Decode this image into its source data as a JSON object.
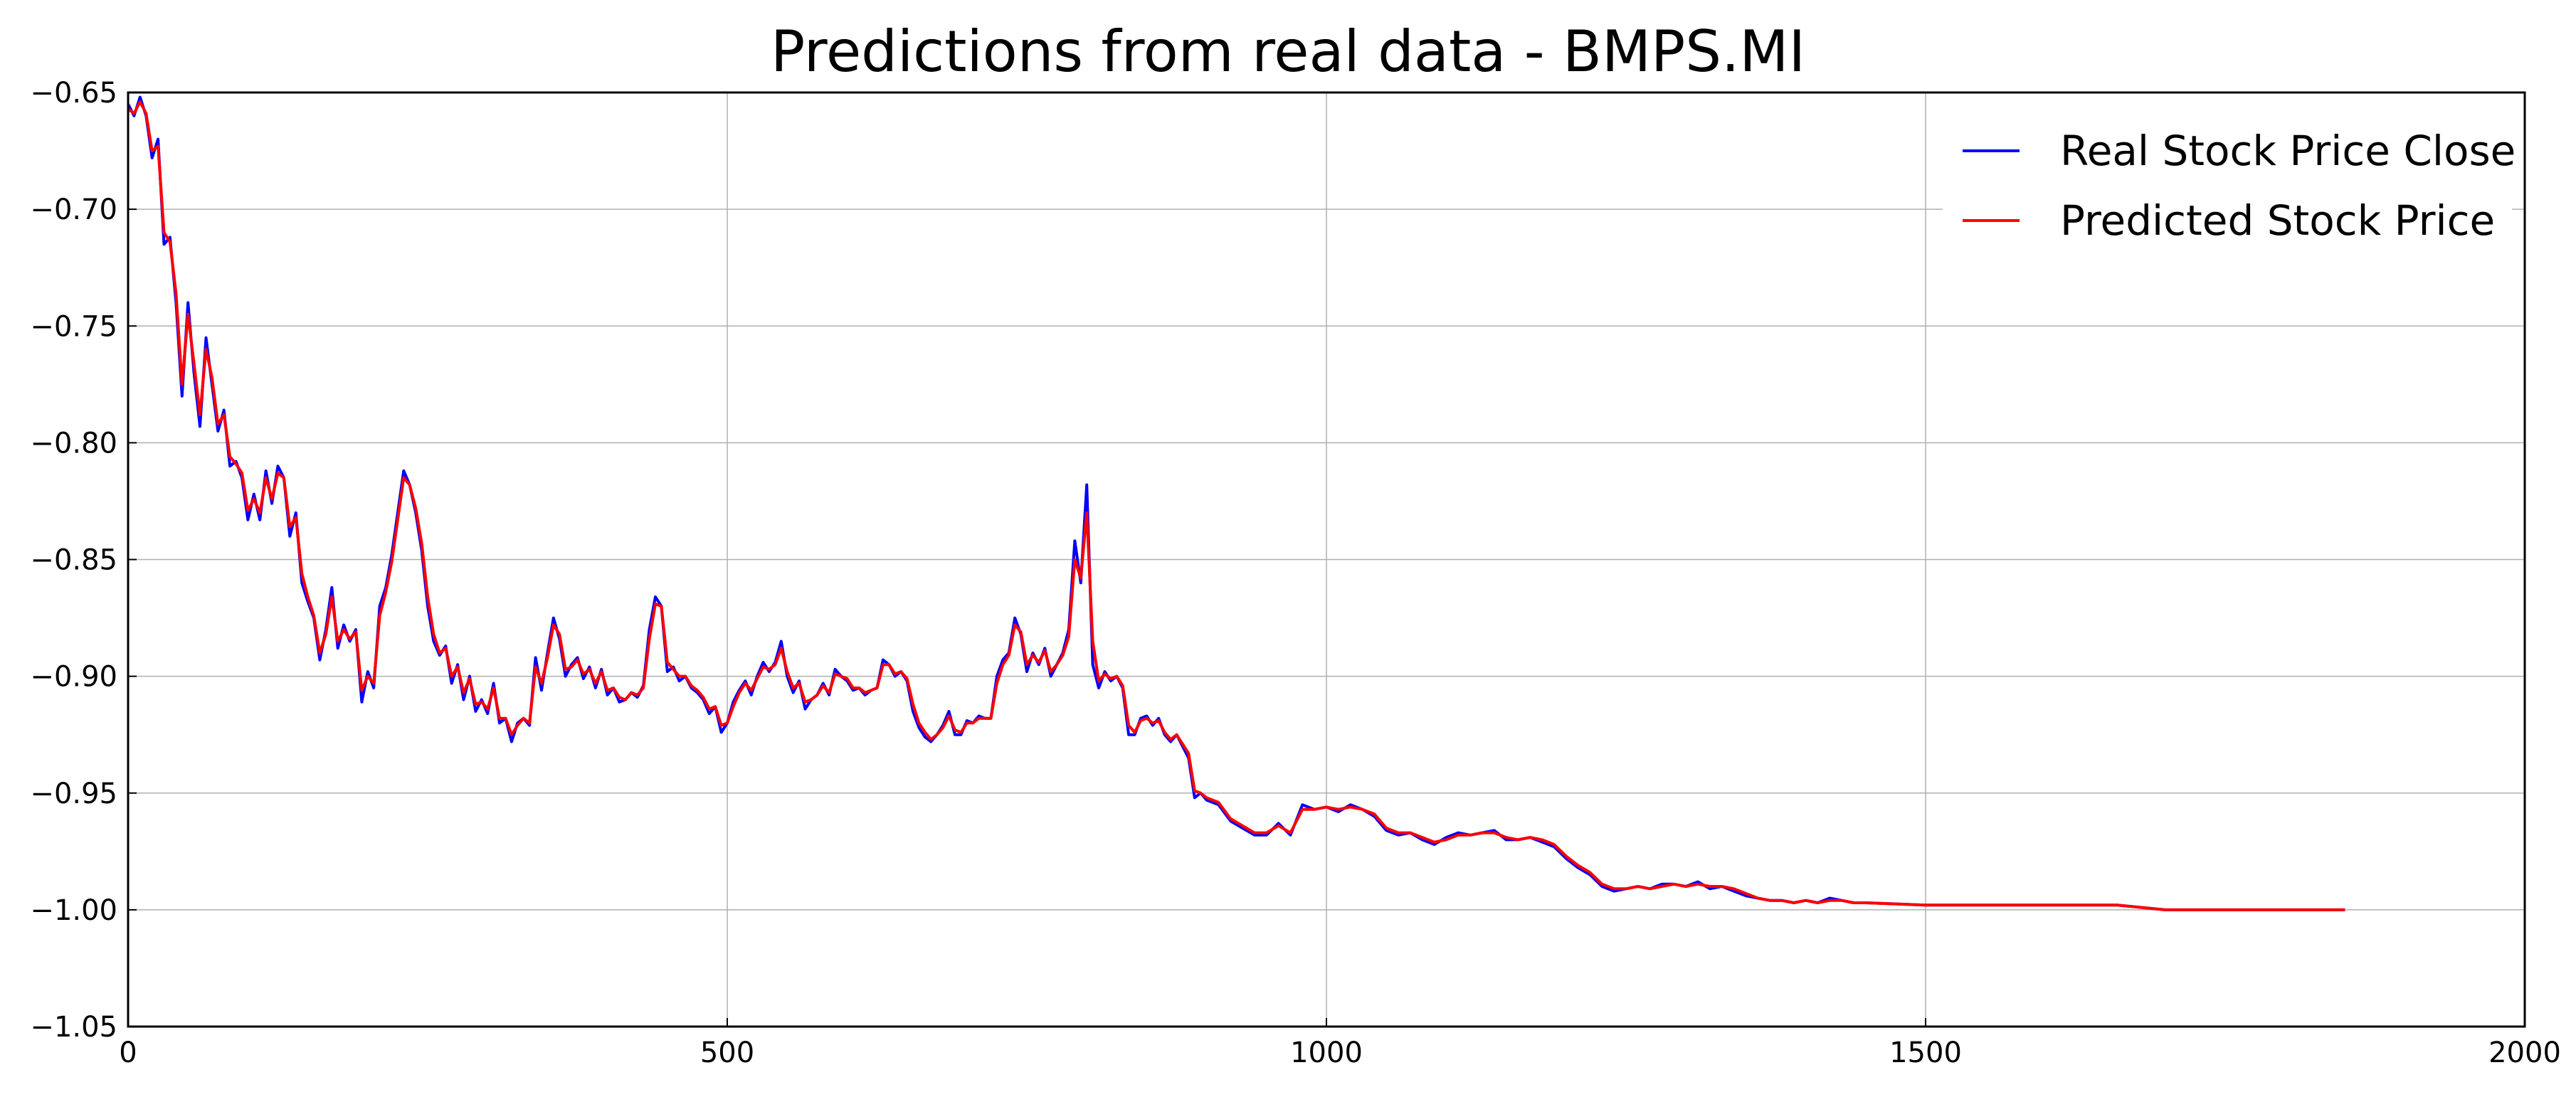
{
  "chart_data": {
    "type": "line",
    "title": "Predictions from real data - BMPS.MI",
    "xlabel": "",
    "ylabel": "",
    "xlim": [
      0,
      2000
    ],
    "ylim": [
      -1.05,
      -0.65
    ],
    "xticks": [
      0,
      500,
      1000,
      1500,
      2000
    ],
    "yticks": [
      -0.65,
      -0.7,
      -0.75,
      -0.8,
      -0.85,
      -0.9,
      -0.95,
      -1.0,
      -1.05
    ],
    "x_tick_labels": [
      "0",
      "500",
      "1000",
      "1500",
      "2000"
    ],
    "y_tick_labels": [
      "−0.65",
      "−0.70",
      "−0.75",
      "−0.80",
      "−0.85",
      "−0.90",
      "−0.95",
      "−1.00",
      "−1.05"
    ],
    "grid": true,
    "legend_position": "top-right",
    "series": [
      {
        "name": "Real Stock Price Close",
        "color": "#0000ff",
        "x": [
          0,
          5,
          10,
          15,
          20,
          25,
          30,
          35,
          40,
          45,
          50,
          55,
          60,
          65,
          70,
          75,
          80,
          85,
          90,
          95,
          100,
          105,
          110,
          115,
          120,
          125,
          130,
          135,
          140,
          145,
          150,
          155,
          160,
          165,
          170,
          175,
          180,
          185,
          190,
          195,
          200,
          205,
          210,
          215,
          220,
          225,
          230,
          235,
          240,
          245,
          250,
          255,
          260,
          265,
          270,
          275,
          280,
          285,
          290,
          295,
          300,
          305,
          310,
          315,
          320,
          325,
          330,
          335,
          340,
          345,
          350,
          355,
          360,
          365,
          370,
          375,
          380,
          385,
          390,
          395,
          400,
          405,
          410,
          415,
          420,
          425,
          430,
          435,
          440,
          445,
          450,
          455,
          460,
          465,
          470,
          475,
          480,
          485,
          490,
          495,
          500,
          505,
          510,
          515,
          520,
          525,
          530,
          535,
          540,
          545,
          550,
          555,
          560,
          565,
          570,
          575,
          580,
          585,
          590,
          595,
          600,
          605,
          610,
          615,
          620,
          625,
          630,
          635,
          640,
          645,
          650,
          655,
          660,
          665,
          670,
          675,
          680,
          685,
          690,
          695,
          700,
          705,
          710,
          715,
          720,
          725,
          730,
          735,
          740,
          745,
          750,
          755,
          760,
          765,
          770,
          775,
          780,
          785,
          790,
          795,
          800,
          805,
          810,
          815,
          820,
          825,
          830,
          835,
          840,
          845,
          850,
          855,
          860,
          865,
          870,
          875,
          880,
          885,
          890,
          895,
          900,
          910,
          920,
          930,
          940,
          950,
          960,
          970,
          980,
          990,
          1000,
          1010,
          1020,
          1030,
          1040,
          1050,
          1060,
          1070,
          1080,
          1090,
          1100,
          1110,
          1120,
          1130,
          1140,
          1150,
          1160,
          1170,
          1180,
          1190,
          1200,
          1210,
          1220,
          1230,
          1240,
          1250,
          1260,
          1270,
          1280,
          1290,
          1300,
          1310,
          1320,
          1330,
          1340,
          1350,
          1360,
          1370,
          1380,
          1390,
          1400,
          1410,
          1420,
          1430,
          1440,
          1450,
          1500,
          1550,
          1600,
          1650,
          1660,
          1700,
          1750,
          1800,
          1850
        ],
        "values": [
          -0.655,
          -0.66,
          -0.652,
          -0.66,
          -0.678,
          -0.67,
          -0.715,
          -0.712,
          -0.74,
          -0.78,
          -0.74,
          -0.77,
          -0.793,
          -0.755,
          -0.775,
          -0.795,
          -0.786,
          -0.81,
          -0.808,
          -0.815,
          -0.833,
          -0.822,
          -0.833,
          -0.812,
          -0.826,
          -0.81,
          -0.815,
          -0.84,
          -0.83,
          -0.86,
          -0.868,
          -0.875,
          -0.893,
          -0.88,
          -0.862,
          -0.888,
          -0.878,
          -0.885,
          -0.88,
          -0.911,
          -0.898,
          -0.905,
          -0.87,
          -0.862,
          -0.848,
          -0.83,
          -0.812,
          -0.818,
          -0.83,
          -0.846,
          -0.87,
          -0.885,
          -0.891,
          -0.887,
          -0.903,
          -0.895,
          -0.91,
          -0.9,
          -0.915,
          -0.91,
          -0.916,
          -0.903,
          -0.92,
          -0.918,
          -0.928,
          -0.92,
          -0.918,
          -0.921,
          -0.892,
          -0.906,
          -0.89,
          -0.875,
          -0.884,
          -0.9,
          -0.895,
          -0.892,
          -0.901,
          -0.896,
          -0.905,
          -0.897,
          -0.908,
          -0.905,
          -0.911,
          -0.91,
          -0.907,
          -0.909,
          -0.904,
          -0.88,
          -0.866,
          -0.87,
          -0.898,
          -0.896,
          -0.902,
          -0.9,
          -0.905,
          -0.907,
          -0.91,
          -0.916,
          -0.913,
          -0.924,
          -0.92,
          -0.911,
          -0.906,
          -0.902,
          -0.908,
          -0.9,
          -0.894,
          -0.898,
          -0.894,
          -0.885,
          -0.9,
          -0.907,
          -0.902,
          -0.914,
          -0.91,
          -0.908,
          -0.903,
          -0.908,
          -0.897,
          -0.9,
          -0.902,
          -0.906,
          -0.905,
          -0.908,
          -0.906,
          -0.905,
          -0.893,
          -0.895,
          -0.9,
          -0.898,
          -0.902,
          -0.915,
          -0.922,
          -0.926,
          -0.928,
          -0.925,
          -0.921,
          -0.915,
          -0.925,
          -0.925,
          -0.919,
          -0.92,
          -0.917,
          -0.918,
          -0.918,
          -0.9,
          -0.893,
          -0.89,
          -0.875,
          -0.882,
          -0.898,
          -0.89,
          -0.895,
          -0.888,
          -0.9,
          -0.895,
          -0.89,
          -0.88,
          -0.842,
          -0.86,
          -0.818,
          -0.895,
          -0.905,
          -0.898,
          -0.902,
          -0.9,
          -0.905,
          -0.925,
          -0.925,
          -0.918,
          -0.917,
          -0.921,
          -0.918,
          -0.925,
          -0.928,
          -0.925,
          -0.93,
          -0.935,
          -0.952,
          -0.95,
          -0.953,
          -0.955,
          -0.962,
          -0.965,
          -0.968,
          -0.968,
          -0.963,
          -0.968,
          -0.955,
          -0.957,
          -0.956,
          -0.958,
          -0.955,
          -0.957,
          -0.96,
          -0.966,
          -0.968,
          -0.967,
          -0.97,
          -0.972,
          -0.969,
          -0.967,
          -0.968,
          -0.967,
          -0.966,
          -0.97,
          -0.97,
          -0.969,
          -0.971,
          -0.973,
          -0.978,
          -0.982,
          -0.985,
          -0.99,
          -0.992,
          -0.991,
          -0.99,
          -0.991,
          -0.989,
          -0.989,
          -0.99,
          -0.988,
          -0.991,
          -0.99,
          -0.992,
          -0.994,
          -0.995,
          -0.996,
          -0.996,
          -0.997,
          -0.996,
          -0.997,
          -0.995,
          -0.996,
          -0.997,
          -0.997,
          -0.998,
          -0.998,
          -0.998,
          -0.998,
          -0.998,
          -1.0,
          -1.0,
          -1.0,
          -1.0
        ]
      },
      {
        "name": "Predicted Stock Price",
        "color": "#ff0000",
        "x": [
          0,
          5,
          10,
          15,
          20,
          25,
          30,
          35,
          40,
          45,
          50,
          55,
          60,
          65,
          70,
          75,
          80,
          85,
          90,
          95,
          100,
          105,
          110,
          115,
          120,
          125,
          130,
          135,
          140,
          145,
          150,
          155,
          160,
          165,
          170,
          175,
          180,
          185,
          190,
          195,
          200,
          205,
          210,
          215,
          220,
          225,
          230,
          235,
          240,
          245,
          250,
          255,
          260,
          265,
          270,
          275,
          280,
          285,
          290,
          295,
          300,
          305,
          310,
          315,
          320,
          325,
          330,
          335,
          340,
          345,
          350,
          355,
          360,
          365,
          370,
          375,
          380,
          385,
          390,
          395,
          400,
          405,
          410,
          415,
          420,
          425,
          430,
          435,
          440,
          445,
          450,
          455,
          460,
          465,
          470,
          475,
          480,
          485,
          490,
          495,
          500,
          505,
          510,
          515,
          520,
          525,
          530,
          535,
          540,
          545,
          550,
          555,
          560,
          565,
          570,
          575,
          580,
          585,
          590,
          595,
          600,
          605,
          610,
          615,
          620,
          625,
          630,
          635,
          640,
          645,
          650,
          655,
          660,
          665,
          670,
          675,
          680,
          685,
          690,
          695,
          700,
          705,
          710,
          715,
          720,
          725,
          730,
          735,
          740,
          745,
          750,
          755,
          760,
          765,
          770,
          775,
          780,
          785,
          790,
          795,
          800,
          805,
          810,
          815,
          820,
          825,
          830,
          835,
          840,
          845,
          850,
          855,
          860,
          865,
          870,
          875,
          880,
          885,
          890,
          895,
          900,
          910,
          920,
          930,
          940,
          950,
          960,
          970,
          980,
          990,
          1000,
          1010,
          1020,
          1030,
          1040,
          1050,
          1060,
          1070,
          1080,
          1090,
          1100,
          1110,
          1120,
          1130,
          1140,
          1150,
          1160,
          1170,
          1180,
          1190,
          1200,
          1210,
          1220,
          1230,
          1240,
          1250,
          1260,
          1270,
          1280,
          1290,
          1300,
          1310,
          1320,
          1330,
          1340,
          1350,
          1360,
          1370,
          1380,
          1390,
          1400,
          1410,
          1420,
          1430,
          1440,
          1450,
          1500,
          1550,
          1600,
          1650,
          1660,
          1700,
          1750,
          1800,
          1850
        ],
        "values": [
          -0.657,
          -0.659,
          -0.654,
          -0.659,
          -0.675,
          -0.673,
          -0.71,
          -0.714,
          -0.736,
          -0.775,
          -0.745,
          -0.766,
          -0.788,
          -0.76,
          -0.772,
          -0.792,
          -0.788,
          -0.806,
          -0.809,
          -0.813,
          -0.829,
          -0.824,
          -0.83,
          -0.815,
          -0.824,
          -0.813,
          -0.815,
          -0.836,
          -0.832,
          -0.856,
          -0.866,
          -0.874,
          -0.89,
          -0.882,
          -0.866,
          -0.885,
          -0.88,
          -0.884,
          -0.881,
          -0.906,
          -0.9,
          -0.903,
          -0.874,
          -0.864,
          -0.851,
          -0.833,
          -0.815,
          -0.818,
          -0.828,
          -0.843,
          -0.866,
          -0.882,
          -0.89,
          -0.888,
          -0.9,
          -0.896,
          -0.907,
          -0.901,
          -0.912,
          -0.911,
          -0.914,
          -0.905,
          -0.918,
          -0.918,
          -0.925,
          -0.921,
          -0.918,
          -0.92,
          -0.896,
          -0.903,
          -0.892,
          -0.878,
          -0.882,
          -0.897,
          -0.896,
          -0.893,
          -0.899,
          -0.897,
          -0.903,
          -0.898,
          -0.906,
          -0.905,
          -0.909,
          -0.91,
          -0.907,
          -0.908,
          -0.905,
          -0.884,
          -0.869,
          -0.87,
          -0.894,
          -0.897,
          -0.9,
          -0.9,
          -0.904,
          -0.906,
          -0.909,
          -0.914,
          -0.913,
          -0.921,
          -0.92,
          -0.913,
          -0.907,
          -0.903,
          -0.906,
          -0.901,
          -0.896,
          -0.897,
          -0.895,
          -0.888,
          -0.898,
          -0.905,
          -0.903,
          -0.911,
          -0.91,
          -0.908,
          -0.904,
          -0.907,
          -0.899,
          -0.9,
          -0.901,
          -0.905,
          -0.905,
          -0.907,
          -0.906,
          -0.905,
          -0.895,
          -0.895,
          -0.899,
          -0.898,
          -0.901,
          -0.912,
          -0.92,
          -0.924,
          -0.927,
          -0.925,
          -0.922,
          -0.917,
          -0.923,
          -0.924,
          -0.92,
          -0.92,
          -0.918,
          -0.918,
          -0.918,
          -0.903,
          -0.895,
          -0.891,
          -0.878,
          -0.881,
          -0.895,
          -0.891,
          -0.894,
          -0.889,
          -0.898,
          -0.895,
          -0.891,
          -0.883,
          -0.85,
          -0.858,
          -0.83,
          -0.885,
          -0.902,
          -0.899,
          -0.901,
          -0.9,
          -0.904,
          -0.921,
          -0.924,
          -0.919,
          -0.918,
          -0.92,
          -0.919,
          -0.924,
          -0.927,
          -0.925,
          -0.929,
          -0.933,
          -0.949,
          -0.95,
          -0.952,
          -0.954,
          -0.961,
          -0.964,
          -0.967,
          -0.967,
          -0.964,
          -0.967,
          -0.957,
          -0.957,
          -0.956,
          -0.957,
          -0.956,
          -0.957,
          -0.959,
          -0.965,
          -0.967,
          -0.967,
          -0.969,
          -0.971,
          -0.97,
          -0.968,
          -0.968,
          -0.967,
          -0.967,
          -0.969,
          -0.97,
          -0.969,
          -0.97,
          -0.972,
          -0.977,
          -0.981,
          -0.984,
          -0.989,
          -0.991,
          -0.991,
          -0.99,
          -0.991,
          -0.99,
          -0.989,
          -0.99,
          -0.989,
          -0.99,
          -0.99,
          -0.991,
          -0.993,
          -0.995,
          -0.996,
          -0.996,
          -0.997,
          -0.996,
          -0.997,
          -0.996,
          -0.996,
          -0.997,
          -0.997,
          -0.998,
          -0.998,
          -0.998,
          -0.998,
          -0.998,
          -1.0,
          -1.0,
          -1.0,
          -1.0
        ]
      }
    ]
  }
}
